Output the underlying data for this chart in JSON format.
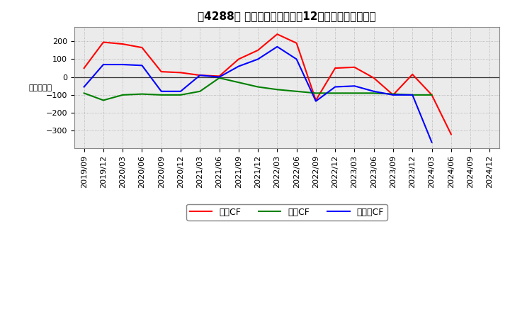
{
  "title": "［4288］ キャッシュフローの12か月移動合計の推移",
  "ylabel": "（百万円）",
  "x_labels": [
    "2019/09",
    "2019/12",
    "2020/03",
    "2020/06",
    "2020/09",
    "2020/12",
    "2021/03",
    "2021/06",
    "2021/09",
    "2021/12",
    "2022/03",
    "2022/06",
    "2022/09",
    "2022/12",
    "2023/03",
    "2023/06",
    "2023/09",
    "2023/12",
    "2024/03",
    "2024/06",
    "2024/09",
    "2024/12"
  ],
  "operating_cf_data": [
    50,
    195,
    185,
    165,
    30,
    25,
    10,
    5,
    100,
    150,
    240,
    190,
    -130,
    50,
    55,
    -5,
    -100,
    15,
    -100,
    -320,
    null,
    null
  ],
  "investing_cf_data": [
    -90,
    -130,
    -100,
    -95,
    -100,
    -100,
    -80,
    -5,
    -30,
    -55,
    -70,
    -80,
    -90,
    -90,
    -90,
    -90,
    -95,
    -100,
    -100,
    null,
    null,
    null
  ],
  "free_cf_data": [
    -55,
    70,
    70,
    65,
    -80,
    -80,
    10,
    0,
    60,
    100,
    170,
    100,
    -135,
    -55,
    -50,
    -80,
    -100,
    -100,
    -365,
    null,
    null,
    null
  ],
  "color_operating": "#ff0000",
  "color_investing": "#008000",
  "color_free": "#0000ff",
  "legend_operating": "営業CF",
  "legend_investing": "投資CF",
  "legend_free": "フリーCF",
  "ylim_min": -400,
  "ylim_max": 280,
  "yticks": [
    -300,
    -200,
    -100,
    0,
    100,
    200
  ],
  "bg_color": "#ffffff",
  "plot_bg_color": "#ebebeb",
  "grid_color": "#aaaaaa",
  "title_fontsize": 11,
  "axis_fontsize": 8,
  "legend_fontsize": 9
}
